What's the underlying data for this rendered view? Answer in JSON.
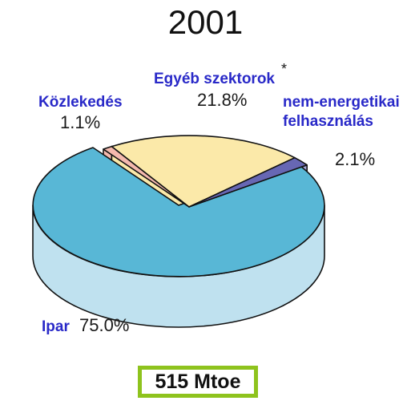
{
  "chart_data": {
    "type": "pie",
    "title": "2001",
    "slices": [
      {
        "label": "Ipar",
        "value": 75.0,
        "value_label": "75.0%",
        "color": "#58b7d6",
        "side_color": "#bfe1ef"
      },
      {
        "label": "Közlekedés",
        "value": 1.1,
        "value_label": "1.1%",
        "color": "#f4b9ae",
        "side_color": "#f4b9ae"
      },
      {
        "label": "Egyéb szektorok",
        "value": 21.8,
        "value_label": "21.8%",
        "marker": "*",
        "color": "#fbe9a9",
        "side_color": "#fbe9a9"
      },
      {
        "label": "nem-energetikai felhasználás",
        "label_lines": [
          "nem-energetikai",
          "felhasználás"
        ],
        "value": 2.1,
        "value_label": "2.1%",
        "color": "#6767b4",
        "side_color": "#a8a8dc"
      }
    ],
    "total_label": "515 Mtoe",
    "label_color": "#2929c8"
  }
}
